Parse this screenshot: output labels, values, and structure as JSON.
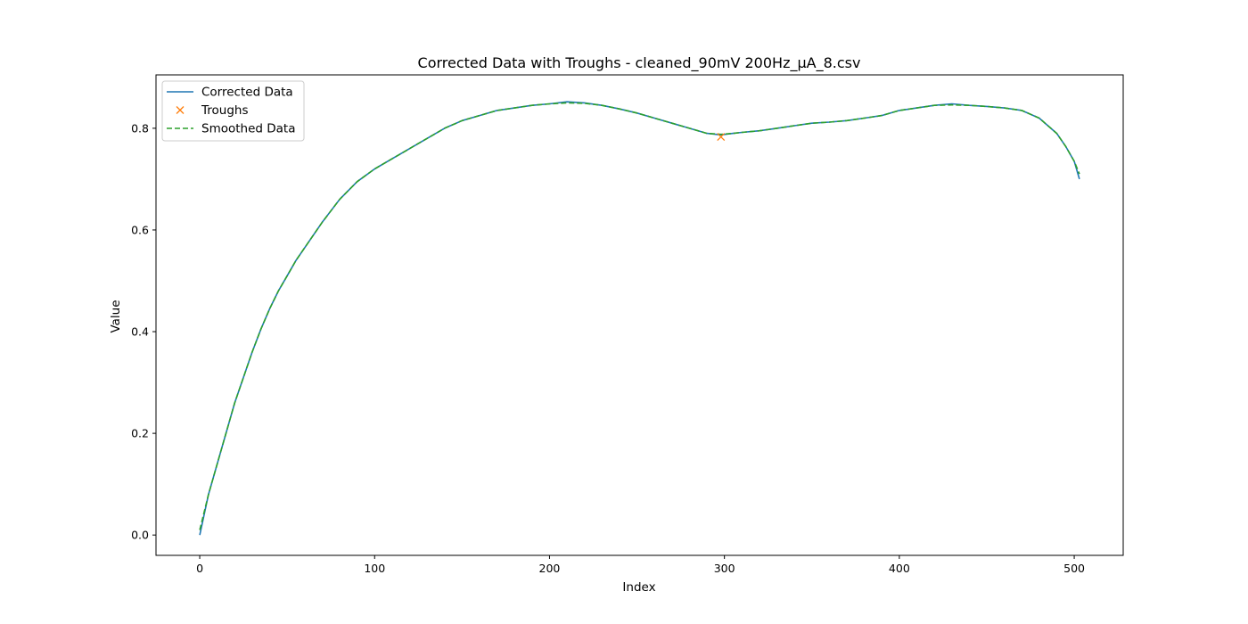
{
  "chart_data": {
    "type": "line",
    "title": "Corrected Data with Troughs - cleaned_90mV 200Hz_µA_8.csv",
    "xlabel": "Index",
    "ylabel": "Value",
    "xlim": [
      -25,
      528
    ],
    "ylim": [
      -0.04,
      0.905
    ],
    "xticks": [
      0,
      100,
      200,
      300,
      400,
      500
    ],
    "yticks": [
      0.0,
      0.2,
      0.4,
      0.6,
      0.8
    ],
    "grid": false,
    "legend": "top-left",
    "series": [
      {
        "name": "Corrected Data",
        "style": "solid",
        "color": "#1f77b4",
        "x": [
          0,
          5,
          10,
          15,
          20,
          25,
          30,
          35,
          40,
          45,
          50,
          55,
          60,
          70,
          80,
          90,
          100,
          110,
          120,
          130,
          140,
          150,
          160,
          170,
          180,
          190,
          200,
          210,
          220,
          230,
          240,
          250,
          260,
          270,
          280,
          290,
          298,
          305,
          310,
          320,
          330,
          340,
          350,
          360,
          370,
          380,
          390,
          400,
          410,
          420,
          430,
          440,
          450,
          460,
          470,
          480,
          490,
          495,
          500,
          503
        ],
        "y": [
          0.0,
          0.08,
          0.14,
          0.2,
          0.26,
          0.31,
          0.36,
          0.405,
          0.445,
          0.48,
          0.51,
          0.54,
          0.565,
          0.615,
          0.66,
          0.695,
          0.72,
          0.74,
          0.76,
          0.78,
          0.8,
          0.815,
          0.825,
          0.835,
          0.84,
          0.845,
          0.848,
          0.852,
          0.85,
          0.845,
          0.838,
          0.83,
          0.82,
          0.81,
          0.8,
          0.79,
          0.787,
          0.79,
          0.792,
          0.795,
          0.8,
          0.805,
          0.81,
          0.812,
          0.815,
          0.82,
          0.825,
          0.835,
          0.84,
          0.845,
          0.848,
          0.845,
          0.843,
          0.84,
          0.835,
          0.82,
          0.79,
          0.765,
          0.735,
          0.7
        ]
      },
      {
        "name": "Troughs",
        "style": "marker-x",
        "color": "#ff7f0e",
        "x": [
          298
        ],
        "y": [
          0.783
        ]
      },
      {
        "name": "Smoothed Data",
        "style": "dashed",
        "color": "#2ca02c",
        "x": [
          0,
          5,
          10,
          15,
          20,
          25,
          30,
          35,
          40,
          45,
          50,
          55,
          60,
          70,
          80,
          90,
          100,
          110,
          120,
          130,
          140,
          150,
          160,
          170,
          180,
          190,
          200,
          210,
          220,
          230,
          240,
          250,
          260,
          270,
          280,
          290,
          298,
          305,
          310,
          320,
          330,
          340,
          350,
          360,
          370,
          380,
          390,
          400,
          410,
          420,
          430,
          440,
          450,
          460,
          470,
          480,
          490,
          495,
          500,
          503
        ],
        "y": [
          0.01,
          0.08,
          0.14,
          0.2,
          0.26,
          0.31,
          0.36,
          0.405,
          0.445,
          0.48,
          0.51,
          0.54,
          0.565,
          0.615,
          0.66,
          0.695,
          0.72,
          0.74,
          0.76,
          0.78,
          0.8,
          0.815,
          0.825,
          0.835,
          0.84,
          0.845,
          0.848,
          0.85,
          0.849,
          0.845,
          0.838,
          0.83,
          0.82,
          0.81,
          0.8,
          0.79,
          0.788,
          0.79,
          0.792,
          0.795,
          0.8,
          0.805,
          0.81,
          0.812,
          0.815,
          0.82,
          0.825,
          0.835,
          0.84,
          0.845,
          0.846,
          0.845,
          0.843,
          0.84,
          0.835,
          0.82,
          0.79,
          0.765,
          0.735,
          0.71
        ]
      }
    ]
  }
}
